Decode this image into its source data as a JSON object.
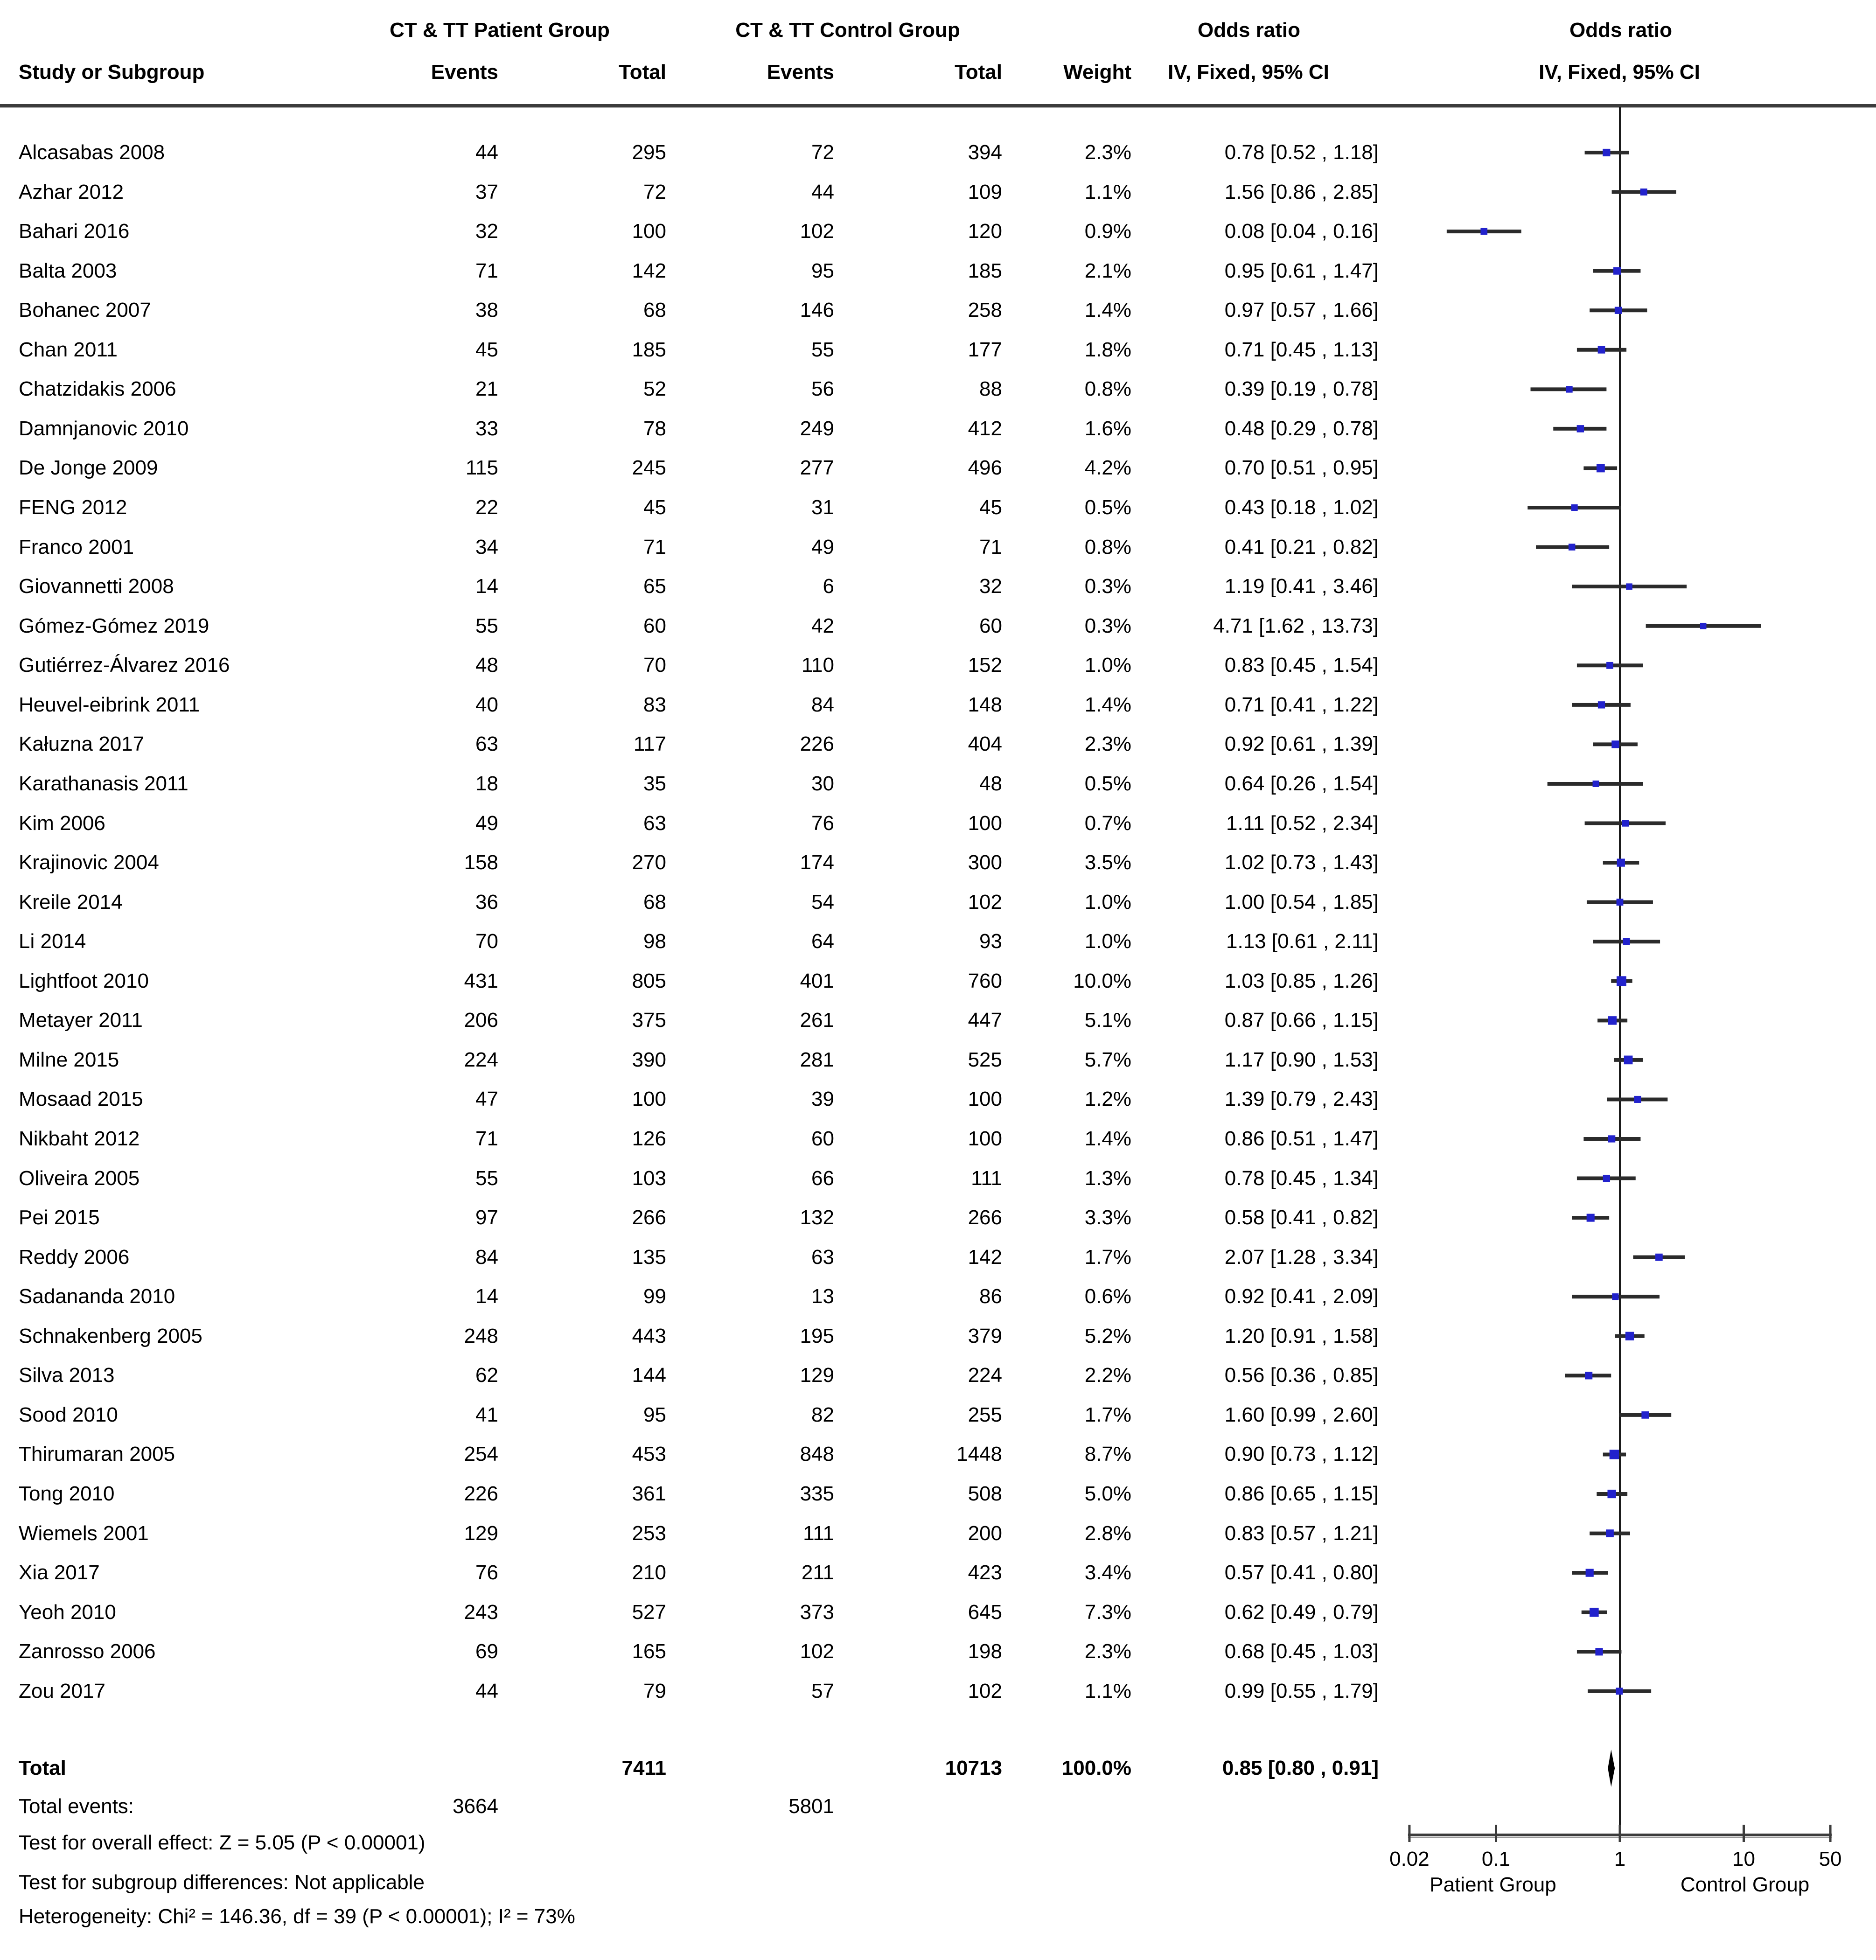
{
  "header": {
    "group1": "CT & TT Patient Group",
    "group2": "CT & TT Control Group",
    "study": "Study or Subgroup",
    "events": "Events",
    "total": "Total",
    "weight": "Weight",
    "or_col_title": "Odds ratio",
    "or_col_sub": "IV, Fixed, 95% CI",
    "plot_col_title": "Odds ratio",
    "plot_col_sub": "IV, Fixed, 95% CI"
  },
  "chart_data": {
    "type": "forest",
    "effect_measure": "Odds ratio, IV, Fixed, 95% CI",
    "x_axis": {
      "scale": "log",
      "min": 0.02,
      "max": 50,
      "ticks": [
        0.02,
        0.1,
        1,
        10,
        50
      ],
      "tick_labels": [
        "0.02",
        "0.1",
        "1",
        "10",
        "50"
      ],
      "left_label": "Patient Group",
      "right_label": "Control Group"
    },
    "studies": [
      {
        "name": "Alcasabas 2008",
        "patient_events": 44,
        "patient_total": 295,
        "control_events": 72,
        "control_total": 394,
        "weight": 2.3,
        "or": 0.78,
        "ci_low": 0.52,
        "ci_high": 1.18
      },
      {
        "name": "Azhar 2012",
        "patient_events": 37,
        "patient_total": 72,
        "control_events": 44,
        "control_total": 109,
        "weight": 1.1,
        "or": 1.56,
        "ci_low": 0.86,
        "ci_high": 2.85
      },
      {
        "name": "Bahari 2016",
        "patient_events": 32,
        "patient_total": 100,
        "control_events": 102,
        "control_total": 120,
        "weight": 0.9,
        "or": 0.08,
        "ci_low": 0.04,
        "ci_high": 0.16
      },
      {
        "name": "Balta 2003",
        "patient_events": 71,
        "patient_total": 142,
        "control_events": 95,
        "control_total": 185,
        "weight": 2.1,
        "or": 0.95,
        "ci_low": 0.61,
        "ci_high": 1.47
      },
      {
        "name": "Bohanec 2007",
        "patient_events": 38,
        "patient_total": 68,
        "control_events": 146,
        "control_total": 258,
        "weight": 1.4,
        "or": 0.97,
        "ci_low": 0.57,
        "ci_high": 1.66
      },
      {
        "name": "Chan 2011",
        "patient_events": 45,
        "patient_total": 185,
        "control_events": 55,
        "control_total": 177,
        "weight": 1.8,
        "or": 0.71,
        "ci_low": 0.45,
        "ci_high": 1.13
      },
      {
        "name": "Chatzidakis 2006",
        "patient_events": 21,
        "patient_total": 52,
        "control_events": 56,
        "control_total": 88,
        "weight": 0.8,
        "or": 0.39,
        "ci_low": 0.19,
        "ci_high": 0.78
      },
      {
        "name": "Damnjanovic 2010",
        "patient_events": 33,
        "patient_total": 78,
        "control_events": 249,
        "control_total": 412,
        "weight": 1.6,
        "or": 0.48,
        "ci_low": 0.29,
        "ci_high": 0.78
      },
      {
        "name": "De Jonge 2009",
        "patient_events": 115,
        "patient_total": 245,
        "control_events": 277,
        "control_total": 496,
        "weight": 4.2,
        "or": 0.7,
        "ci_low": 0.51,
        "ci_high": 0.95
      },
      {
        "name": "FENG 2012",
        "patient_events": 22,
        "patient_total": 45,
        "control_events": 31,
        "control_total": 45,
        "weight": 0.5,
        "or": 0.43,
        "ci_low": 0.18,
        "ci_high": 1.02
      },
      {
        "name": "Franco 2001",
        "patient_events": 34,
        "patient_total": 71,
        "control_events": 49,
        "control_total": 71,
        "weight": 0.8,
        "or": 0.41,
        "ci_low": 0.21,
        "ci_high": 0.82
      },
      {
        "name": "Giovannetti 2008",
        "patient_events": 14,
        "patient_total": 65,
        "control_events": 6,
        "control_total": 32,
        "weight": 0.3,
        "or": 1.19,
        "ci_low": 0.41,
        "ci_high": 3.46
      },
      {
        "name": "Gómez-Gómez 2019",
        "patient_events": 55,
        "patient_total": 60,
        "control_events": 42,
        "control_total": 60,
        "weight": 0.3,
        "or": 4.71,
        "ci_low": 1.62,
        "ci_high": 13.73
      },
      {
        "name": "Gutiérrez-Álvarez 2016",
        "patient_events": 48,
        "patient_total": 70,
        "control_events": 110,
        "control_total": 152,
        "weight": 1.0,
        "or": 0.83,
        "ci_low": 0.45,
        "ci_high": 1.54
      },
      {
        "name": "Heuvel-eibrink 2011",
        "patient_events": 40,
        "patient_total": 83,
        "control_events": 84,
        "control_total": 148,
        "weight": 1.4,
        "or": 0.71,
        "ci_low": 0.41,
        "ci_high": 1.22
      },
      {
        "name": "Kałuzna 2017",
        "patient_events": 63,
        "patient_total": 117,
        "control_events": 226,
        "control_total": 404,
        "weight": 2.3,
        "or": 0.92,
        "ci_low": 0.61,
        "ci_high": 1.39
      },
      {
        "name": "Karathanasis 2011",
        "patient_events": 18,
        "patient_total": 35,
        "control_events": 30,
        "control_total": 48,
        "weight": 0.5,
        "or": 0.64,
        "ci_low": 0.26,
        "ci_high": 1.54
      },
      {
        "name": "Kim 2006",
        "patient_events": 49,
        "patient_total": 63,
        "control_events": 76,
        "control_total": 100,
        "weight": 0.7,
        "or": 1.11,
        "ci_low": 0.52,
        "ci_high": 2.34
      },
      {
        "name": "Krajinovic 2004",
        "patient_events": 158,
        "patient_total": 270,
        "control_events": 174,
        "control_total": 300,
        "weight": 3.5,
        "or": 1.02,
        "ci_low": 0.73,
        "ci_high": 1.43
      },
      {
        "name": "Kreile 2014",
        "patient_events": 36,
        "patient_total": 68,
        "control_events": 54,
        "control_total": 102,
        "weight": 1.0,
        "or": 1.0,
        "ci_low": 0.54,
        "ci_high": 1.85
      },
      {
        "name": "Li 2014",
        "patient_events": 70,
        "patient_total": 98,
        "control_events": 64,
        "control_total": 93,
        "weight": 1.0,
        "or": 1.13,
        "ci_low": 0.61,
        "ci_high": 2.11
      },
      {
        "name": "Lightfoot 2010",
        "patient_events": 431,
        "patient_total": 805,
        "control_events": 401,
        "control_total": 760,
        "weight": 10.0,
        "or": 1.03,
        "ci_low": 0.85,
        "ci_high": 1.26
      },
      {
        "name": "Metayer 2011",
        "patient_events": 206,
        "patient_total": 375,
        "control_events": 261,
        "control_total": 447,
        "weight": 5.1,
        "or": 0.87,
        "ci_low": 0.66,
        "ci_high": 1.15
      },
      {
        "name": "Milne 2015",
        "patient_events": 224,
        "patient_total": 390,
        "control_events": 281,
        "control_total": 525,
        "weight": 5.7,
        "or": 1.17,
        "ci_low": 0.9,
        "ci_high": 1.53
      },
      {
        "name": "Mosaad 2015",
        "patient_events": 47,
        "patient_total": 100,
        "control_events": 39,
        "control_total": 100,
        "weight": 1.2,
        "or": 1.39,
        "ci_low": 0.79,
        "ci_high": 2.43
      },
      {
        "name": "Nikbaht 2012",
        "patient_events": 71,
        "patient_total": 126,
        "control_events": 60,
        "control_total": 100,
        "weight": 1.4,
        "or": 0.86,
        "ci_low": 0.51,
        "ci_high": 1.47
      },
      {
        "name": "Oliveira 2005",
        "patient_events": 55,
        "patient_total": 103,
        "control_events": 66,
        "control_total": 111,
        "weight": 1.3,
        "or": 0.78,
        "ci_low": 0.45,
        "ci_high": 1.34
      },
      {
        "name": "Pei 2015",
        "patient_events": 97,
        "patient_total": 266,
        "control_events": 132,
        "control_total": 266,
        "weight": 3.3,
        "or": 0.58,
        "ci_low": 0.41,
        "ci_high": 0.82
      },
      {
        "name": "Reddy 2006",
        "patient_events": 84,
        "patient_total": 135,
        "control_events": 63,
        "control_total": 142,
        "weight": 1.7,
        "or": 2.07,
        "ci_low": 1.28,
        "ci_high": 3.34
      },
      {
        "name": "Sadananda 2010",
        "patient_events": 14,
        "patient_total": 99,
        "control_events": 13,
        "control_total": 86,
        "weight": 0.6,
        "or": 0.92,
        "ci_low": 0.41,
        "ci_high": 2.09
      },
      {
        "name": "Schnakenberg 2005",
        "patient_events": 248,
        "patient_total": 443,
        "control_events": 195,
        "control_total": 379,
        "weight": 5.2,
        "or": 1.2,
        "ci_low": 0.91,
        "ci_high": 1.58
      },
      {
        "name": "Silva 2013",
        "patient_events": 62,
        "patient_total": 144,
        "control_events": 129,
        "control_total": 224,
        "weight": 2.2,
        "or": 0.56,
        "ci_low": 0.36,
        "ci_high": 0.85
      },
      {
        "name": "Sood 2010",
        "patient_events": 41,
        "patient_total": 95,
        "control_events": 82,
        "control_total": 255,
        "weight": 1.7,
        "or": 1.6,
        "ci_low": 0.99,
        "ci_high": 2.6
      },
      {
        "name": "Thirumaran 2005",
        "patient_events": 254,
        "patient_total": 453,
        "control_events": 848,
        "control_total": 1448,
        "weight": 8.7,
        "or": 0.9,
        "ci_low": 0.73,
        "ci_high": 1.12
      },
      {
        "name": "Tong 2010",
        "patient_events": 226,
        "patient_total": 361,
        "control_events": 335,
        "control_total": 508,
        "weight": 5.0,
        "or": 0.86,
        "ci_low": 0.65,
        "ci_high": 1.15
      },
      {
        "name": "Wiemels 2001",
        "patient_events": 129,
        "patient_total": 253,
        "control_events": 111,
        "control_total": 200,
        "weight": 2.8,
        "or": 0.83,
        "ci_low": 0.57,
        "ci_high": 1.21
      },
      {
        "name": "Xia 2017",
        "patient_events": 76,
        "patient_total": 210,
        "control_events": 211,
        "control_total": 423,
        "weight": 3.4,
        "or": 0.57,
        "ci_low": 0.41,
        "ci_high": 0.8
      },
      {
        "name": "Yeoh 2010",
        "patient_events": 243,
        "patient_total": 527,
        "control_events": 373,
        "control_total": 645,
        "weight": 7.3,
        "or": 0.62,
        "ci_low": 0.49,
        "ci_high": 0.79
      },
      {
        "name": "Zanrosso 2006",
        "patient_events": 69,
        "patient_total": 165,
        "control_events": 102,
        "control_total": 198,
        "weight": 2.3,
        "or": 0.68,
        "ci_low": 0.45,
        "ci_high": 1.03
      },
      {
        "name": "Zou 2017",
        "patient_events": 44,
        "patient_total": 79,
        "control_events": 57,
        "control_total": 102,
        "weight": 1.1,
        "or": 0.99,
        "ci_low": 0.55,
        "ci_high": 1.79
      }
    ],
    "total": {
      "label": "Total",
      "patient_total": 7411,
      "control_total": 10713,
      "weight_display": "100.0%",
      "or": 0.85,
      "ci_low": 0.8,
      "ci_high": 0.91,
      "or_display": "0.85 [0.80 , 0.91]"
    },
    "total_events": {
      "label": "Total events:",
      "patient": 3664,
      "control": 5801
    },
    "footer": [
      "Test for overall effect: Z = 5.05 (P < 0.00001)",
      "Test for subgroup differences: Not applicable",
      "Heterogeneity: Chi² = 146.36, df = 39 (P < 0.00001); I² = 73%"
    ]
  },
  "colors": {
    "marker_blue": "#2222cc",
    "ci_line": "#2b2b2b",
    "reference_line": "#1a1a1a",
    "rule_dark": "#3c3c3c",
    "rule_light": "#9a9a9a",
    "diamond": "#000000"
  }
}
